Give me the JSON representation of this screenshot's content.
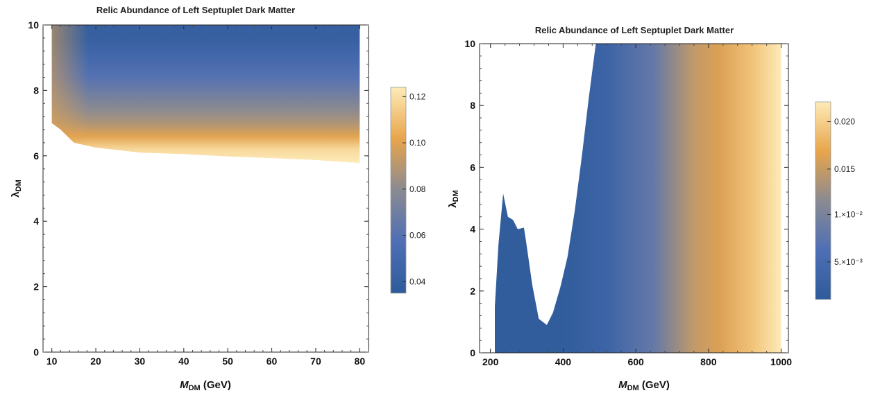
{
  "colors": {
    "low": "#2e5b9a",
    "mid_blue": "#4e6fb5",
    "grey": "#8a8a92",
    "orange": "#e8a54b",
    "high": "#fdebb8"
  },
  "chart_data": [
    {
      "type": "heatmap",
      "title": "Relic Abundance of Left Septuplet Dark Matter",
      "xlabel": "M",
      "xlabel_sub": "DM",
      "xlabel_unit": " (GeV)",
      "ylabel": "λ",
      "ylabel_sub": "DM",
      "xlim": [
        8,
        82
      ],
      "ylim": [
        0,
        10
      ],
      "xticks": [
        10,
        20,
        30,
        40,
        50,
        60,
        70,
        80
      ],
      "yticks": [
        0,
        2,
        4,
        6,
        8,
        10
      ],
      "colorbar": {
        "range": [
          0.035,
          0.124
        ],
        "ticks": [
          {
            "value": 0.04,
            "label": "0.04"
          },
          {
            "value": 0.06,
            "label": "0.06"
          },
          {
            "value": 0.08,
            "label": "0.08"
          },
          {
            "value": 0.1,
            "label": "0.10"
          },
          {
            "value": 0.12,
            "label": "0.12"
          }
        ]
      },
      "region_x": [
        10,
        80
      ],
      "region_lower_boundary": [
        [
          10,
          7.0
        ],
        [
          12,
          6.8
        ],
        [
          15,
          6.4
        ],
        [
          20,
          6.25
        ],
        [
          30,
          6.1
        ],
        [
          40,
          6.05
        ],
        [
          50,
          5.98
        ],
        [
          60,
          5.93
        ],
        [
          70,
          5.87
        ],
        [
          80,
          5.78
        ]
      ],
      "region_upper": 10,
      "value_profile_vs_lambda": [
        [
          5.8,
          0.124
        ],
        [
          6.2,
          0.118
        ],
        [
          6.6,
          0.1
        ],
        [
          7.0,
          0.088
        ],
        [
          7.4,
          0.08
        ],
        [
          7.9,
          0.07
        ],
        [
          8.4,
          0.06
        ],
        [
          9.0,
          0.05
        ],
        [
          9.5,
          0.042
        ],
        [
          10.0,
          0.04
        ]
      ]
    },
    {
      "type": "heatmap",
      "title": "Relic Abundance of Left Septuplet Dark Matter",
      "xlabel": "M",
      "xlabel_sub": "DM",
      "xlabel_unit": " (GeV)",
      "ylabel": "λ",
      "ylabel_sub": "DM",
      "xlim": [
        170,
        1020
      ],
      "ylim": [
        0,
        10
      ],
      "xticks": [
        200,
        400,
        600,
        800,
        1000
      ],
      "yticks": [
        0,
        2,
        4,
        6,
        8,
        10
      ],
      "colorbar": {
        "range": [
          0.0005,
          0.0222
        ],
        "ticks": [
          {
            "value": 0.005,
            "label": "5.×10⁻³"
          },
          {
            "value": 0.01,
            "label": "1.×10⁻²"
          },
          {
            "value": 0.015,
            "label": "0.015"
          },
          {
            "value": 0.02,
            "label": "0.020"
          }
        ]
      },
      "region_boundary": [
        [
          212,
          0
        ],
        [
          212,
          1.5
        ],
        [
          222,
          3.5
        ],
        [
          235,
          5.15
        ],
        [
          248,
          4.4
        ],
        [
          262,
          4.3
        ],
        [
          275,
          4.0
        ],
        [
          292,
          4.05
        ],
        [
          298,
          3.6
        ],
        [
          315,
          2.2
        ],
        [
          333,
          1.1
        ],
        [
          355,
          0.9
        ],
        [
          372,
          1.3
        ],
        [
          393,
          2.15
        ],
        [
          412,
          3.1
        ],
        [
          432,
          4.6
        ],
        [
          452,
          6.4
        ],
        [
          470,
          8.2
        ],
        [
          490,
          10
        ],
        [
          1000,
          10
        ],
        [
          1000,
          0
        ]
      ],
      "value_profile_vs_mass": [
        [
          212,
          0.001
        ],
        [
          400,
          0.001
        ],
        [
          520,
          0.003
        ],
        [
          650,
          0.008
        ],
        [
          760,
          0.0145
        ],
        [
          830,
          0.016
        ],
        [
          920,
          0.019
        ],
        [
          1000,
          0.0222
        ]
      ]
    }
  ]
}
